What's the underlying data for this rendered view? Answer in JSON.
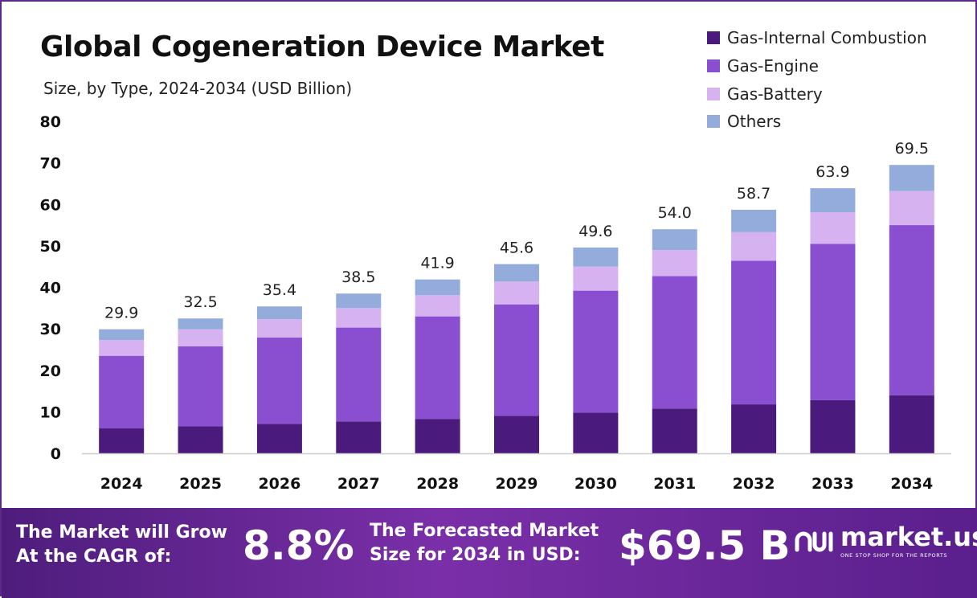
{
  "header": {
    "title": "Global Cogeneration Device Market",
    "subtitle": "Size, by Type, 2024-2034 (USD Billion)"
  },
  "legend": [
    {
      "label": "Gas-Internal Combustion",
      "color": "#4a1a7c"
    },
    {
      "label": "Gas-Engine",
      "color": "#8a4fd0"
    },
    {
      "label": "Gas-Battery",
      "color": "#d7b2f0"
    },
    {
      "label": "Others",
      "color": "#93acdc"
    }
  ],
  "chart_data": {
    "type": "bar",
    "stacked": true,
    "categories": [
      "2024",
      "2025",
      "2026",
      "2027",
      "2028",
      "2029",
      "2030",
      "2031",
      "2032",
      "2033",
      "2034"
    ],
    "series": [
      {
        "name": "Gas-Internal Combustion",
        "color": "#4a1a7c",
        "values": [
          6.0,
          6.5,
          7.1,
          7.7,
          8.3,
          9.0,
          9.8,
          10.8,
          11.8,
          12.8,
          14.0
        ]
      },
      {
        "name": "Gas-Engine",
        "color": "#8a4fd0",
        "values": [
          17.5,
          19.3,
          20.8,
          22.6,
          24.7,
          26.9,
          29.4,
          31.9,
          34.6,
          37.7,
          41.0
        ]
      },
      {
        "name": "Gas-Battery",
        "color": "#d7b2f0",
        "values": [
          3.8,
          4.1,
          4.4,
          4.7,
          5.1,
          5.5,
          5.8,
          6.3,
          6.9,
          7.6,
          8.2
        ]
      },
      {
        "name": "Others",
        "color": "#93acdc",
        "values": [
          2.6,
          2.6,
          3.1,
          3.5,
          3.8,
          4.2,
          4.6,
          5.0,
          5.4,
          5.8,
          6.3
        ]
      }
    ],
    "totals": [
      "29.9",
      "32.5",
      "35.4",
      "38.5",
      "41.9",
      "45.6",
      "49.6",
      "54.0",
      "58.7",
      "63.9",
      "69.5"
    ],
    "yticks": [
      "0",
      "10",
      "20",
      "30",
      "40",
      "50",
      "60",
      "70",
      "80"
    ],
    "ylim": [
      0,
      80
    ],
    "grid": false,
    "legend_position": "top-right"
  },
  "banner": {
    "cagr_label_line1": "The Market will Grow",
    "cagr_label_line2": "At the CAGR of:",
    "cagr_value": "8.8%",
    "forecast_label_line1": "The Forecasted Market",
    "forecast_label_line2": "Size for 2034 in USD:",
    "forecast_value": "$69.5 B",
    "logo_text": "market.us",
    "logo_tagline": "ONE STOP SHOP FOR THE REPORTS"
  }
}
